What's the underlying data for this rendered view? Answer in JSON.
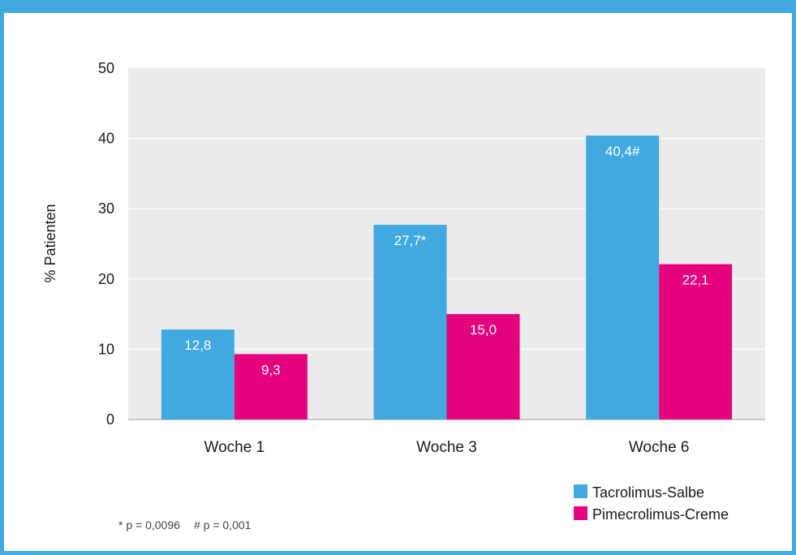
{
  "chart_data": {
    "type": "bar",
    "categories": [
      "Woche 1",
      "Woche 3",
      "Woche 6"
    ],
    "series": [
      {
        "name": "Tacrolimus-Salbe",
        "color": "#3fa9e0",
        "values": [
          12.8,
          27.7,
          40.4
        ],
        "labels": [
          "12,8",
          "27,7*",
          "40,4#"
        ]
      },
      {
        "name": "Pimecrolimus-Creme",
        "color": "#e5007e",
        "values": [
          9.3,
          15.0,
          22.1
        ],
        "labels": [
          "9,3",
          "15,0",
          "22,1"
        ]
      }
    ],
    "ylabel": "% Patienten",
    "ylim": [
      0,
      50
    ],
    "yticks": [
      0,
      10,
      20,
      30,
      40,
      50
    ],
    "grid": true,
    "plot_background": "#ebebeb",
    "legend_position": "bottom-right"
  },
  "footnote": {
    "p1": "* p = 0,0096",
    "p2": "# p = 0,001"
  },
  "frame_color": "#3fa9e0"
}
